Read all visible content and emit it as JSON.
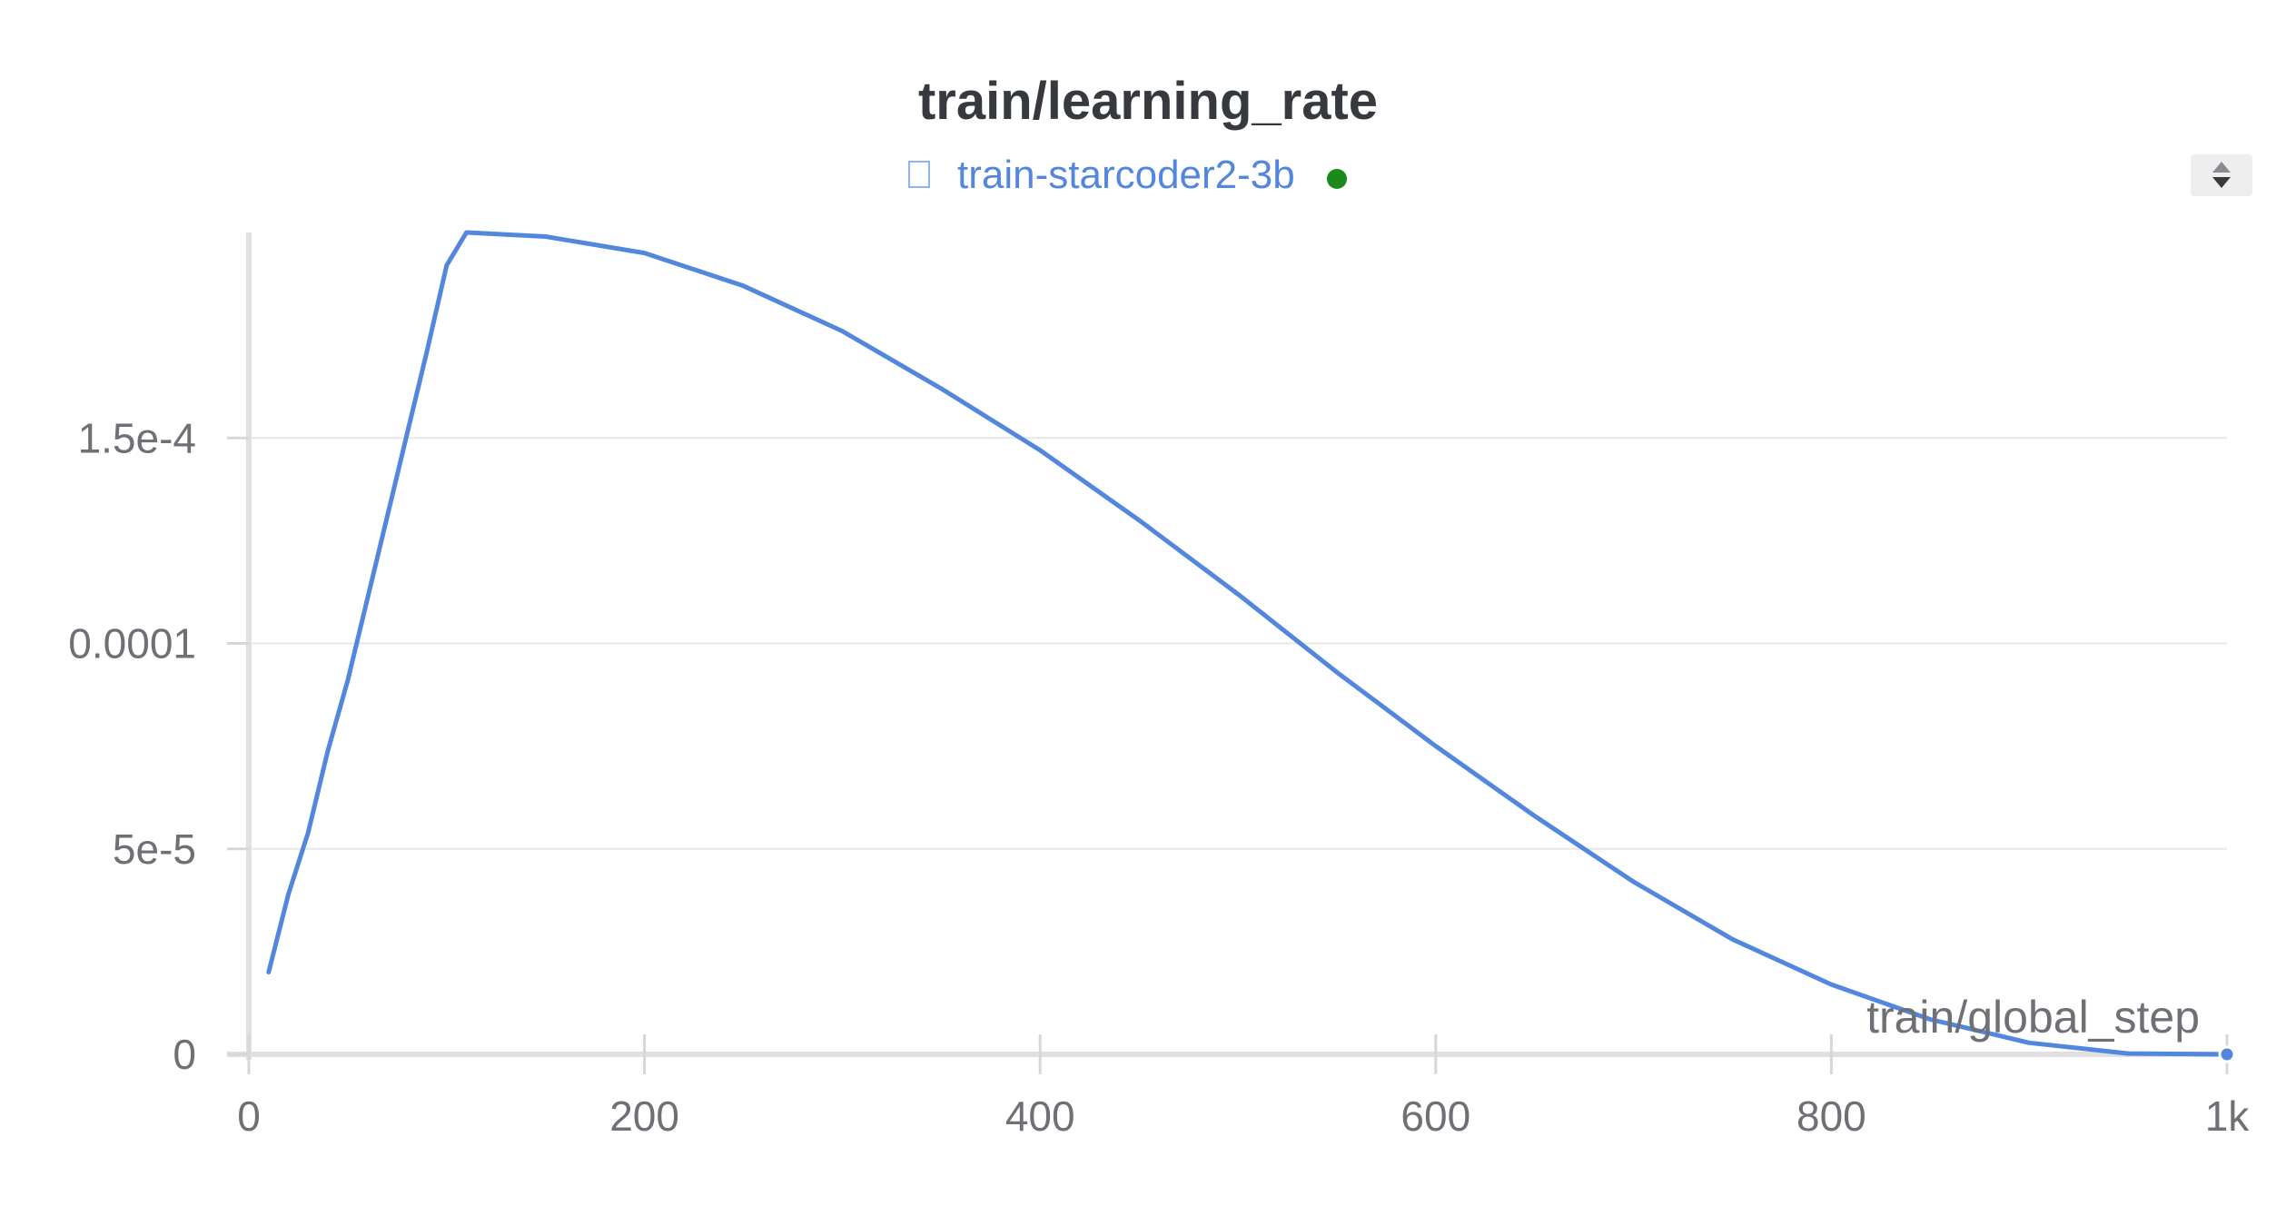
{
  "chart_data": {
    "type": "line",
    "title": "train/learning_rate",
    "xlabel": "train/global_step",
    "ylabel": "",
    "xlim": [
      0,
      1000
    ],
    "ylim": [
      0,
      0.0002
    ],
    "grid": true,
    "legend_position": "top-center",
    "x_ticks": [
      {
        "value": 0,
        "label": "0"
      },
      {
        "value": 200,
        "label": "200"
      },
      {
        "value": 400,
        "label": "400"
      },
      {
        "value": 600,
        "label": "600"
      },
      {
        "value": 800,
        "label": "800"
      },
      {
        "value": 1000,
        "label": "1k"
      }
    ],
    "y_ticks": [
      {
        "value": 0,
        "label": "0"
      },
      {
        "value": 5e-05,
        "label": "5e-5"
      },
      {
        "value": 0.0001,
        "label": "0.0001"
      },
      {
        "value": 0.00015,
        "label": "1.5e-4"
      }
    ],
    "series": [
      {
        "name": "train-starcoder2-3b",
        "color": "#5387dd",
        "status_color": "#1a8a1a",
        "x": [
          10,
          20,
          30,
          40,
          50,
          60,
          70,
          80,
          90,
          100,
          110,
          150,
          200,
          250,
          300,
          350,
          400,
          450,
          500,
          550,
          600,
          650,
          700,
          750,
          800,
          850,
          900,
          950,
          1000
        ],
        "y": [
          2e-05,
          3.9e-05,
          5.4e-05,
          7.4e-05,
          9.1e-05,
          0.000111,
          0.000131,
          0.000151,
          0.000171,
          0.000192,
          0.0002,
          0.000199,
          0.000195,
          0.000187,
          0.000176,
          0.000162,
          0.000147,
          0.00013,
          0.000112,
          9.3e-05,
          7.5e-05,
          5.8e-05,
          4.2e-05,
          2.8e-05,
          1.7e-05,
          8.5e-06,
          2.8e-06,
          2e-07,
          0
        ]
      }
    ]
  },
  "legend": {
    "run_icon": "square-outline-icon",
    "scroll_icon": "up-down-arrows-icon"
  }
}
